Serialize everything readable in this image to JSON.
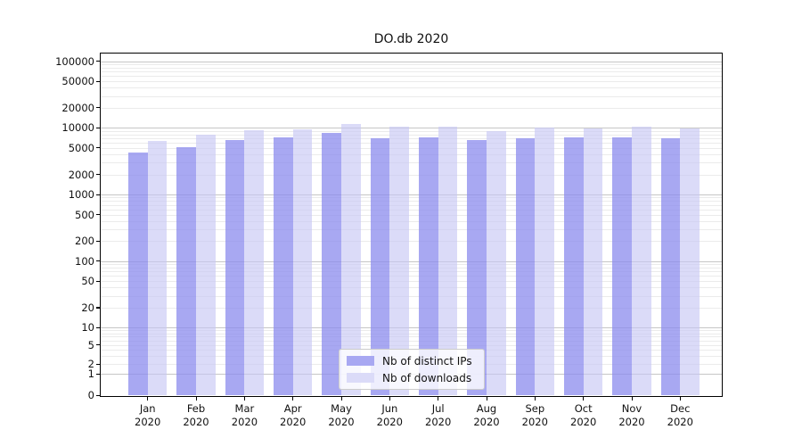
{
  "chart_data": {
    "type": "bar",
    "title": "DO.db 2020",
    "categories": [
      "Jan",
      "Feb",
      "Mar",
      "Apr",
      "May",
      "Jun",
      "Jul",
      "Aug",
      "Sep",
      "Oct",
      "Nov",
      "Dec"
    ],
    "category_year": "2020",
    "series": [
      {
        "name": "Nb of distinct IPs",
        "color": "#a8a8f2",
        "fill": "rgba(140,140,238,0.76)",
        "values": [
          4200,
          5100,
          6600,
          7100,
          8400,
          7000,
          7200,
          6500,
          6900,
          7300,
          7300,
          7000
        ]
      },
      {
        "name": "Nb of downloads",
        "color": "#dbdbf8",
        "fill": "rgba(198,198,244,0.64)",
        "values": [
          6300,
          8000,
          9100,
          9500,
          11600,
          10300,
          10300,
          8900,
          10100,
          9900,
          10400,
          9800
        ]
      }
    ],
    "yscale": "log-with-zero-baseline",
    "y_ticks": [
      0,
      1,
      2,
      5,
      10,
      20,
      50,
      100,
      200,
      500,
      1000,
      2000,
      5000,
      10000,
      20000,
      50000,
      100000
    ],
    "ylim": [
      0,
      131000
    ],
    "xlabel": "",
    "ylabel": "",
    "grid": "horizontal major (powers of 10) and minor gridlines",
    "legend_position": "lower center inside plot"
  }
}
